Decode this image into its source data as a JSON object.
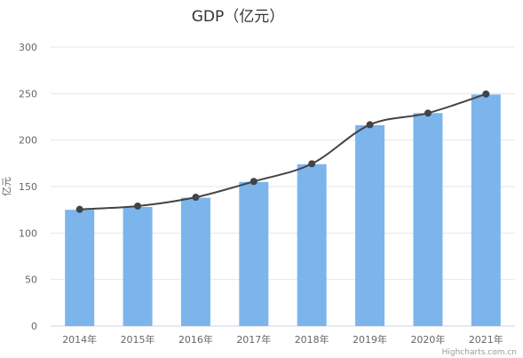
{
  "chart_data": {
    "type": "bar",
    "title": "GDP（亿元）",
    "ylabel": "亿元",
    "xlabel": "",
    "categories": [
      "2014年",
      "2015年",
      "2016年",
      "2017年",
      "2018年",
      "2019年",
      "2020年",
      "2021年"
    ],
    "series": [
      {
        "type": "bar",
        "values": [
          125,
          128,
          138,
          155,
          174,
          216,
          229,
          249
        ],
        "color": "#7cb5ec"
      },
      {
        "type": "spline",
        "values": [
          125.5,
          129,
          138.5,
          155.5,
          174.5,
          216.5,
          229,
          249.5
        ],
        "color": "#434348"
      }
    ],
    "ylim": [
      0,
      300
    ],
    "yticks": [
      0,
      50,
      100,
      150,
      200,
      250,
      300
    ],
    "grid": true,
    "legend": "none"
  },
  "credit": "Highcharts.com.cn"
}
